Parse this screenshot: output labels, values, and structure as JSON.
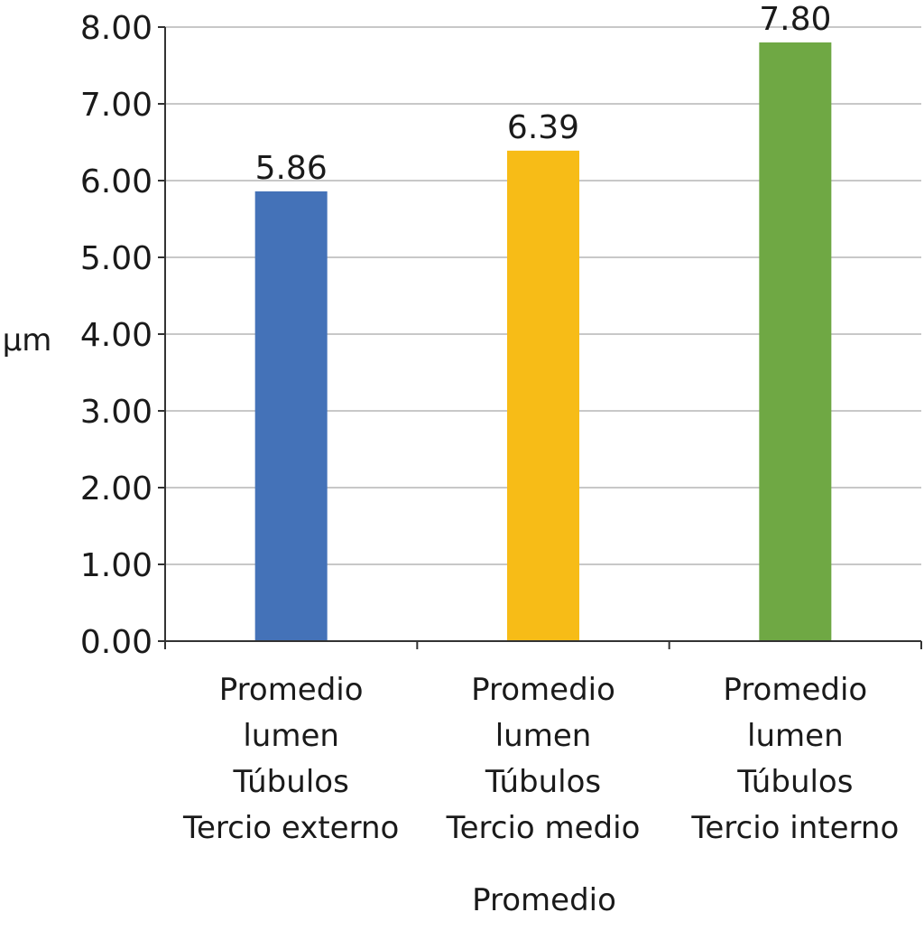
{
  "chart_data": {
    "type": "bar",
    "title": "",
    "xlabel": "Promedio",
    "ylabel": "µm",
    "ylim": [
      0,
      8
    ],
    "yticks": [
      "0.00",
      "1.00",
      "2.00",
      "3.00",
      "4.00",
      "5.00",
      "6.00",
      "7.00",
      "8.00"
    ],
    "grid": true,
    "categories": [
      [
        "Promedio",
        "lumen",
        "Túbulos",
        "Tercio externo"
      ],
      [
        "Promedio",
        "lumen",
        "Túbulos",
        "Tercio medio"
      ],
      [
        "Promedio",
        "lumen",
        "Túbulos",
        "Tercio interno"
      ]
    ],
    "values": [
      5.86,
      6.39,
      7.8
    ],
    "data_labels": [
      "5.86",
      "6.39",
      "7.80"
    ],
    "colors": [
      "#4472b8",
      "#f7bc17",
      "#6fa844"
    ]
  }
}
